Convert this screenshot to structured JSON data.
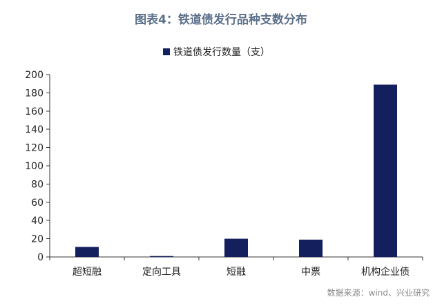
{
  "chart_data": {
    "type": "bar",
    "title": "图表4：铁道债发行品种支数分布",
    "categories": [
      "超短融",
      "定向工具",
      "短融",
      "中票",
      "机构企业债"
    ],
    "series": [
      {
        "name": "铁道债发行数量（支）",
        "values": [
          11,
          1,
          20,
          19,
          189
        ]
      }
    ],
    "yticks": [
      "0",
      "20",
      "40",
      "60",
      "80",
      "100",
      "120",
      "140",
      "160",
      "180",
      "200"
    ],
    "ylim": [
      0,
      200
    ],
    "grid": false,
    "legend_position": "top-center",
    "bar_color": "#14205e",
    "source": "数据来源：wind、兴业研究"
  }
}
